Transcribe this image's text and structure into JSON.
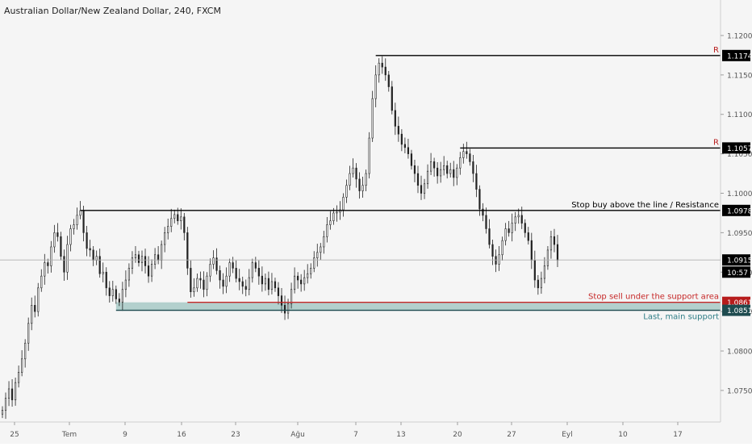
{
  "chart_data": {
    "type": "candlestick",
    "title": "Australian Dollar/New Zealand Dollar, 240, FXCM",
    "ylim": [
      1.071,
      1.1245
    ],
    "x_ticks": [
      "25",
      "Tem",
      "9",
      "16",
      "23",
      "Ağu",
      "7",
      "13",
      "20",
      "27",
      "Eyl",
      "10",
      "17"
    ],
    "y_ticks": [
      "1.12000",
      "1.11500",
      "1.11000",
      "1.10500",
      "1.10000",
      "1.09500",
      "1.09000",
      "1.08500",
      "1.08000",
      "1.07500"
    ],
    "price_labels": [
      {
        "text": "1.11746",
        "price": 1.11746,
        "color": "#000000"
      },
      {
        "text": "1.10574",
        "price": 1.10574,
        "color": "#000000"
      },
      {
        "text": "1.09782",
        "price": 1.09782,
        "color": "#000000"
      },
      {
        "text": "1.09154",
        "price": 1.09154,
        "color": "#000000"
      },
      {
        "text": "10:57",
        "price": 1.09,
        "color": "#000000"
      },
      {
        "text": "1.08617",
        "price": 1.08617,
        "color": "#b71c1c"
      },
      {
        "text": "1.08516",
        "price": 1.08516,
        "color": "#1e4b4f"
      }
    ],
    "levels": [
      {
        "price": 1.11746,
        "label": "R",
        "color": "#000000",
        "label_color": "#b71c1c",
        "from_index": 115
      },
      {
        "price": 1.10574,
        "label": "R",
        "color": "#000000",
        "label_color": "#b71c1c",
        "from_index": 141
      },
      {
        "price": 1.09782,
        "label": "Stop buy above the line / Resistance",
        "color": "#000000",
        "label_color": "#000000",
        "from_index": 24
      },
      {
        "price": 1.08617,
        "label": "Stop sell under the support area",
        "color": "#c62828",
        "label_color": "#c62828",
        "from_index": 57
      },
      {
        "price": 1.08516,
        "label": "Last, main support",
        "color": "#1e4b4f",
        "label_color": "#2e7d86",
        "from_index": 35
      }
    ],
    "support_zone": [
      1.08516,
      1.08617
    ],
    "current_price": 1.09154,
    "close": [
      1.0725,
      1.074,
      1.0752,
      1.0738,
      1.076,
      1.0773,
      1.079,
      1.081,
      1.0835,
      1.0858,
      1.085,
      1.088,
      1.0895,
      1.0912,
      1.0908,
      1.0932,
      1.095,
      1.0945,
      1.092,
      1.09,
      1.0935,
      1.0955,
      1.096,
      1.0972,
      1.0978,
      1.095,
      1.093,
      1.0928,
      1.0915,
      1.092,
      1.0898,
      1.09,
      1.088,
      1.087,
      1.0878,
      1.0866,
      1.0862,
      1.0878,
      1.089,
      1.0905,
      1.0918,
      1.0922,
      1.0912,
      1.092,
      1.0908,
      1.0895,
      1.091,
      1.0922,
      1.0915,
      1.0935,
      1.095,
      1.0958,
      1.0968,
      1.0973,
      1.0965,
      1.097,
      1.095,
      1.0905,
      1.0875,
      1.088,
      1.0892,
      1.089,
      1.0878,
      1.0895,
      1.091,
      1.0918,
      1.0902,
      1.089,
      1.0882,
      1.0895,
      1.0912,
      1.0905,
      1.0892,
      1.0888,
      1.0882,
      1.0878,
      1.0893,
      1.0912,
      1.0905,
      1.0895,
      1.0885,
      1.0892,
      1.0878,
      1.0888,
      1.088,
      1.087,
      1.0858,
      1.0848,
      1.086,
      1.0878,
      1.0895,
      1.089,
      1.0885,
      1.0893,
      1.0898,
      1.0905,
      1.0918,
      1.0925,
      1.0932,
      1.0945,
      1.096,
      1.0965,
      1.0975,
      1.0976,
      1.0979,
      1.0995,
      1.101,
      1.1025,
      1.1032,
      1.1018,
      1.1003,
      1.101,
      1.1025,
      1.107,
      1.112,
      1.115,
      1.1165,
      1.116,
      1.115,
      1.1135,
      1.1105,
      1.1085,
      1.1075,
      1.1062,
      1.1058,
      1.105,
      1.1035,
      1.1025,
      1.101,
      1.1,
      1.1012,
      1.1028,
      1.104,
      1.1032,
      1.1022,
      1.103,
      1.1035,
      1.1025,
      1.103,
      1.102,
      1.1032,
      1.1045,
      1.1053,
      1.105,
      1.104,
      1.1025,
      1.1005,
      1.098,
      1.0972,
      1.0955,
      1.0935,
      1.092,
      1.091,
      1.0922,
      1.094,
      1.0955,
      1.095,
      1.0962,
      1.097,
      1.0972,
      1.0962,
      1.095,
      1.094,
      1.0915,
      1.089,
      1.088,
      1.0892,
      1.0908,
      1.0928,
      1.0945,
      1.0935,
      1.0915
    ]
  }
}
